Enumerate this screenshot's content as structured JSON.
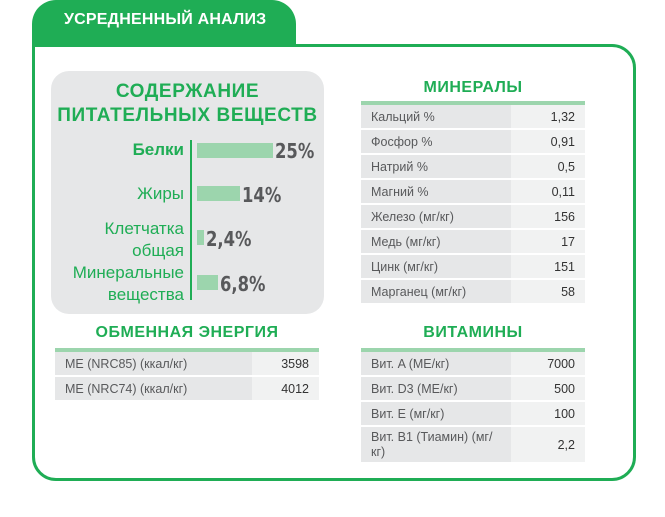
{
  "header": {
    "title": "УСРЕДНЕННЫЙ АНАЛИЗ"
  },
  "nutrients": {
    "title_line1": "СОДЕРЖАНИЕ",
    "title_line2": "ПИТАТЕЛЬНЫХ ВЕЩЕСТВ",
    "items": [
      {
        "label_line1": "Белки",
        "label_line2": "",
        "value": "25%",
        "percent": 25
      },
      {
        "label_line1": "Жиры",
        "label_line2": "",
        "value": "14%",
        "percent": 14
      },
      {
        "label_line1": "Клетчатка",
        "label_line2": "общая",
        "value": "2,4%",
        "percent": 2.4
      },
      {
        "label_line1": "Минеральные",
        "label_line2": "вещества",
        "value": "6,8%",
        "percent": 6.8
      }
    ]
  },
  "energy": {
    "title": "ОБМЕННАЯ ЭНЕРГИЯ",
    "rows": [
      {
        "label": "ME (NRC85) (ккал/кг)",
        "value": "3598"
      },
      {
        "label": "ME (NRC74) (ккал/кг)",
        "value": "4012"
      }
    ]
  },
  "minerals": {
    "title": "МИНЕРАЛЫ",
    "rows": [
      {
        "label": "Кальций %",
        "value": "1,32"
      },
      {
        "label": "Фосфор %",
        "value": "0,91"
      },
      {
        "label": "Натрий %",
        "value": "0,5"
      },
      {
        "label": "Магний %",
        "value": "0,11"
      },
      {
        "label": "Железо (мг/кг)",
        "value": "156"
      },
      {
        "label": "Медь (мг/кг)",
        "value": "17"
      },
      {
        "label": "Цинк (мг/кг)",
        "value": "151"
      },
      {
        "label": "Марганец (мг/кг)",
        "value": "58"
      }
    ]
  },
  "vitamins": {
    "title": "ВИТАМИНЫ",
    "rows": [
      {
        "label": "Вит. A (ME/кг)",
        "value": "7000"
      },
      {
        "label": "Вит. D3 (ME/кг)",
        "value": "500"
      },
      {
        "label": "Вит. E (мг/кг)",
        "value": "100"
      },
      {
        "label": "Вит. B1 (Тиамин) (мг/кг)",
        "value": "2,2"
      }
    ]
  },
  "colors": {
    "accent": "#1fad55",
    "bar": "#9cd5ad",
    "panel": "#e6e7e8"
  }
}
